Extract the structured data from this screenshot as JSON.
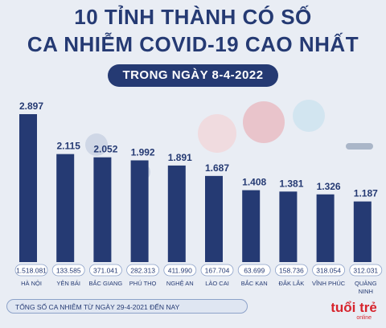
{
  "title_line1": "10 TỈNH THÀNH CÓ SỐ",
  "title_line2": "CA NHIỄM COVID-19 CAO NHẤT",
  "date_label": "TRONG NGÀY 8-4-2022",
  "total_caption": "TỔNG SỐ CA NHIỄM TỪ NGÀY 29-4-2021 ĐẾN NAY",
  "logo_text": "tuổi trẻ",
  "logo_sub": "online",
  "colors": {
    "bar": "#253a73",
    "text": "#253a73",
    "accent": "#d7242d"
  },
  "chart_data": {
    "type": "bar",
    "categories": [
      "HÀ NỘI",
      "YÊN BÁI",
      "BẮC GIANG",
      "PHÚ THỌ",
      "NGHỆ AN",
      "LÀO CAI",
      "BẮC KẠN",
      "ĐẮK LẮK",
      "VĨNH PHÚC",
      "QUẢNG NINH"
    ],
    "values": [
      2897,
      2115,
      2052,
      1992,
      1891,
      1687,
      1408,
      1381,
      1326,
      1187
    ],
    "value_labels": [
      "2.897",
      "2.115",
      "2.052",
      "1.992",
      "1.891",
      "1.687",
      "1.408",
      "1.381",
      "1.326",
      "1.187"
    ],
    "totals": [
      "1.518.081",
      "133.585",
      "371.041",
      "282.313",
      "411.990",
      "167.704",
      "63.699",
      "158.736",
      "318.054",
      "312.031"
    ],
    "ylim": [
      0,
      3000
    ],
    "grid": false,
    "legend": "none"
  }
}
